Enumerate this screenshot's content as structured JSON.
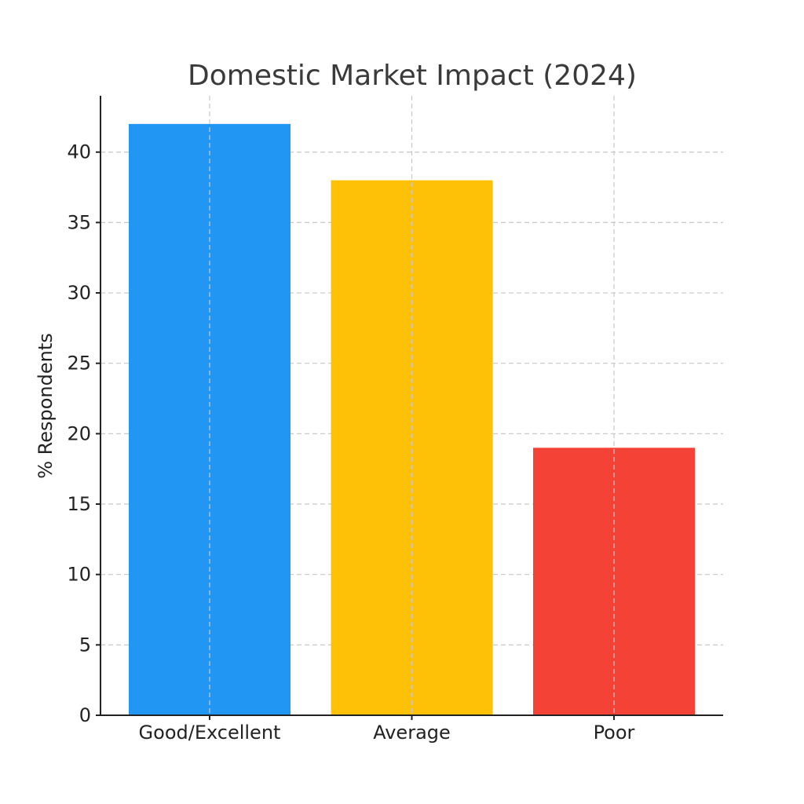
{
  "chart_data": {
    "type": "bar",
    "title": "Domestic Market Impact (2024)",
    "xlabel": "",
    "ylabel": "% Respondents",
    "categories": [
      "Good/Excellent",
      "Average",
      "Poor"
    ],
    "values": [
      42,
      38,
      19
    ],
    "colors": [
      "#2196F3",
      "#FFC107",
      "#F44336"
    ],
    "ylim": [
      0,
      44
    ],
    "yticks": [
      0,
      5,
      10,
      15,
      20,
      25,
      30,
      35,
      40
    ],
    "grid": true,
    "legend": "none"
  }
}
